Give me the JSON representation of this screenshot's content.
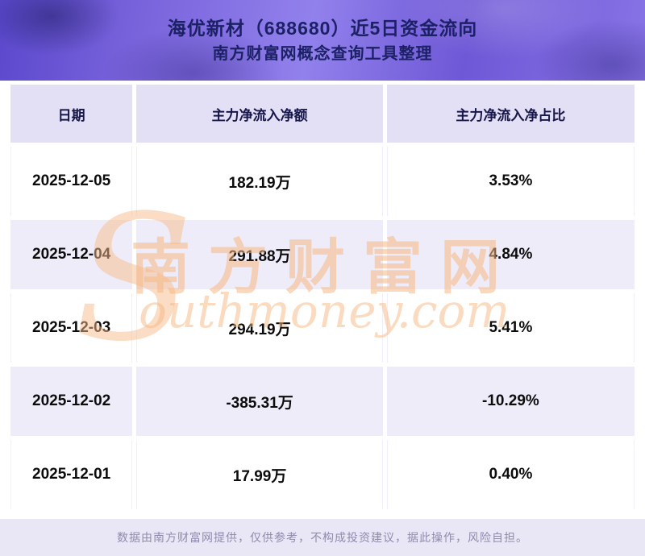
{
  "header": {
    "title_line1": "海优新材（688680）近5日资金流向",
    "title_line2": "南方财富网概念查询工具整理"
  },
  "chart_data": {
    "type": "table",
    "title": "海优新材（688680）近5日资金流向",
    "subtitle": "南方财富网概念查询工具整理",
    "columns": [
      "日期",
      "主力净流入净额",
      "主力净流入净占比"
    ],
    "rows": [
      [
        "2025-12-05",
        "182.19万",
        "3.53%"
      ],
      [
        "2025-12-04",
        "291.88万",
        "4.84%"
      ],
      [
        "2025-12-03",
        "294.19万",
        "5.41%"
      ],
      [
        "2025-12-02",
        "-385.31万",
        "-10.29%"
      ],
      [
        "2025-12-01",
        "17.99万",
        "0.40%"
      ]
    ],
    "net_inflow_wan": [
      182.19,
      291.88,
      294.19,
      -385.31,
      17.99
    ],
    "net_inflow_ratio_pct": [
      3.53,
      4.84,
      5.41,
      -10.29,
      0.4
    ]
  },
  "watermark": {
    "big_s": "S",
    "cn": "南方财富网",
    "en": "outhmoney.com"
  },
  "footer": {
    "disclaimer": "数据由南方财富网提供，仅供参考，不构成投资建议，据此操作，风险自担。"
  },
  "colors": {
    "banner_gradient_start": "#5a48cc",
    "banner_gradient_mid": "#9181ec",
    "banner_text": "#1c2166",
    "header_cell_bg": "#e3dff5",
    "row_even_bg": "#efecf9",
    "row_odd_bg": "#ffffff",
    "footer_bg": "#e9e6f6",
    "footer_text": "#908bad",
    "watermark": "#f6b882"
  }
}
